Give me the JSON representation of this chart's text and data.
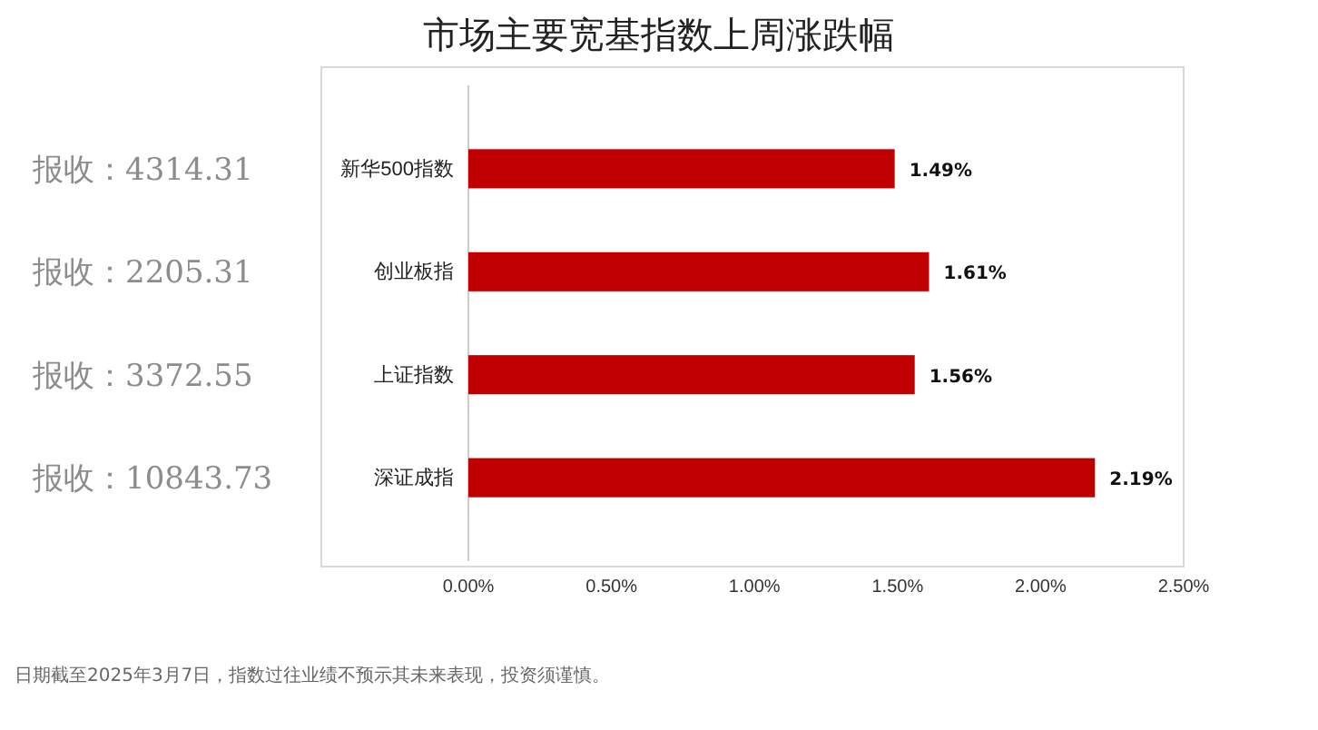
{
  "chart_data": {
    "type": "bar",
    "orientation": "horizontal",
    "title": "市场主要宽基指数上周涨跌幅",
    "categories": [
      "新华500指数",
      "创业板指",
      "上证指数",
      "深证成指"
    ],
    "values": [
      1.49,
      1.61,
      1.56,
      2.19
    ],
    "color": "#c00000",
    "value_labels": [
      "1.49%",
      "1.61%",
      "1.56%",
      "2.19%"
    ],
    "xlim": [
      0,
      2.5
    ],
    "xticks": [
      {
        "value": 0,
        "label": "0.00%"
      },
      {
        "value": 0.5,
        "label": "0.50%"
      },
      {
        "value": 1,
        "label": "1.00%"
      },
      {
        "value": 1.5,
        "label": "1.50%"
      },
      {
        "value": 2,
        "label": "2.00%"
      },
      {
        "value": 2.5,
        "label": "2.50%"
      }
    ],
    "grid": false,
    "annotations": [
      "报收：4314.31",
      "报收：2205.31",
      "报收：3372.55",
      "报收：10843.73",
      "日期截至2025年3月7日，指数过往业绩不预示其未来表现，投资须谨慎。"
    ]
  }
}
